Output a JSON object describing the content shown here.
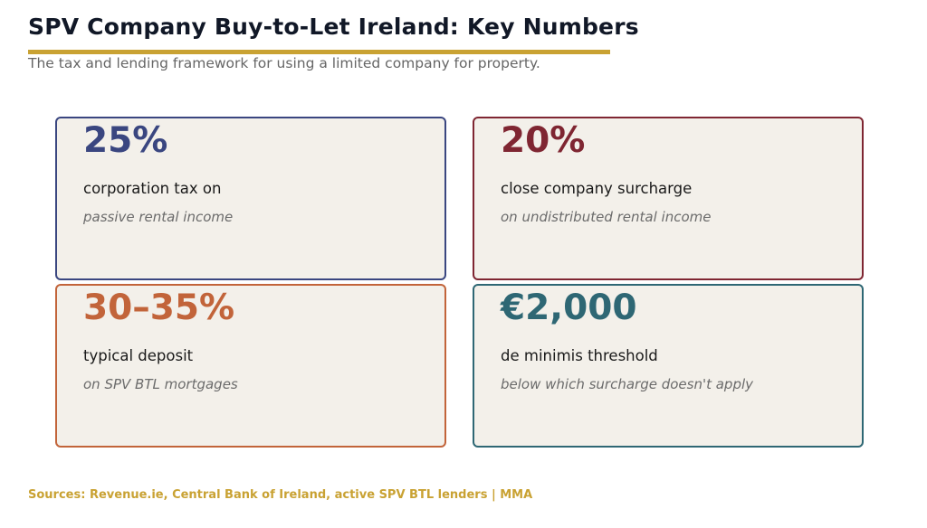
{
  "header": {
    "title": "SPV Company Buy-to-Let Ireland: Key Numbers",
    "subtitle": "The tax and lending framework for using a limited company for property.",
    "accent_color": "#c9a233"
  },
  "cards": [
    {
      "value": "25%",
      "label": "corporation tax on",
      "sublabel": "passive rental income",
      "color": "#3a4680"
    },
    {
      "value": "20%",
      "label": "close company surcharge",
      "sublabel": "on undistributed rental income",
      "color": "#7f2632"
    },
    {
      "value": "30–35%",
      "label": "typical deposit",
      "sublabel": "on SPV BTL mortgages",
      "color": "#c2643a"
    },
    {
      "value": "€2,000",
      "label": "de minimis threshold",
      "sublabel": "below which surcharge doesn't apply",
      "color": "#2e6774"
    }
  ],
  "footer": {
    "sources": "Sources: Revenue.ie, Central Bank of Ireland, active SPV BTL lenders  |  MMA"
  }
}
